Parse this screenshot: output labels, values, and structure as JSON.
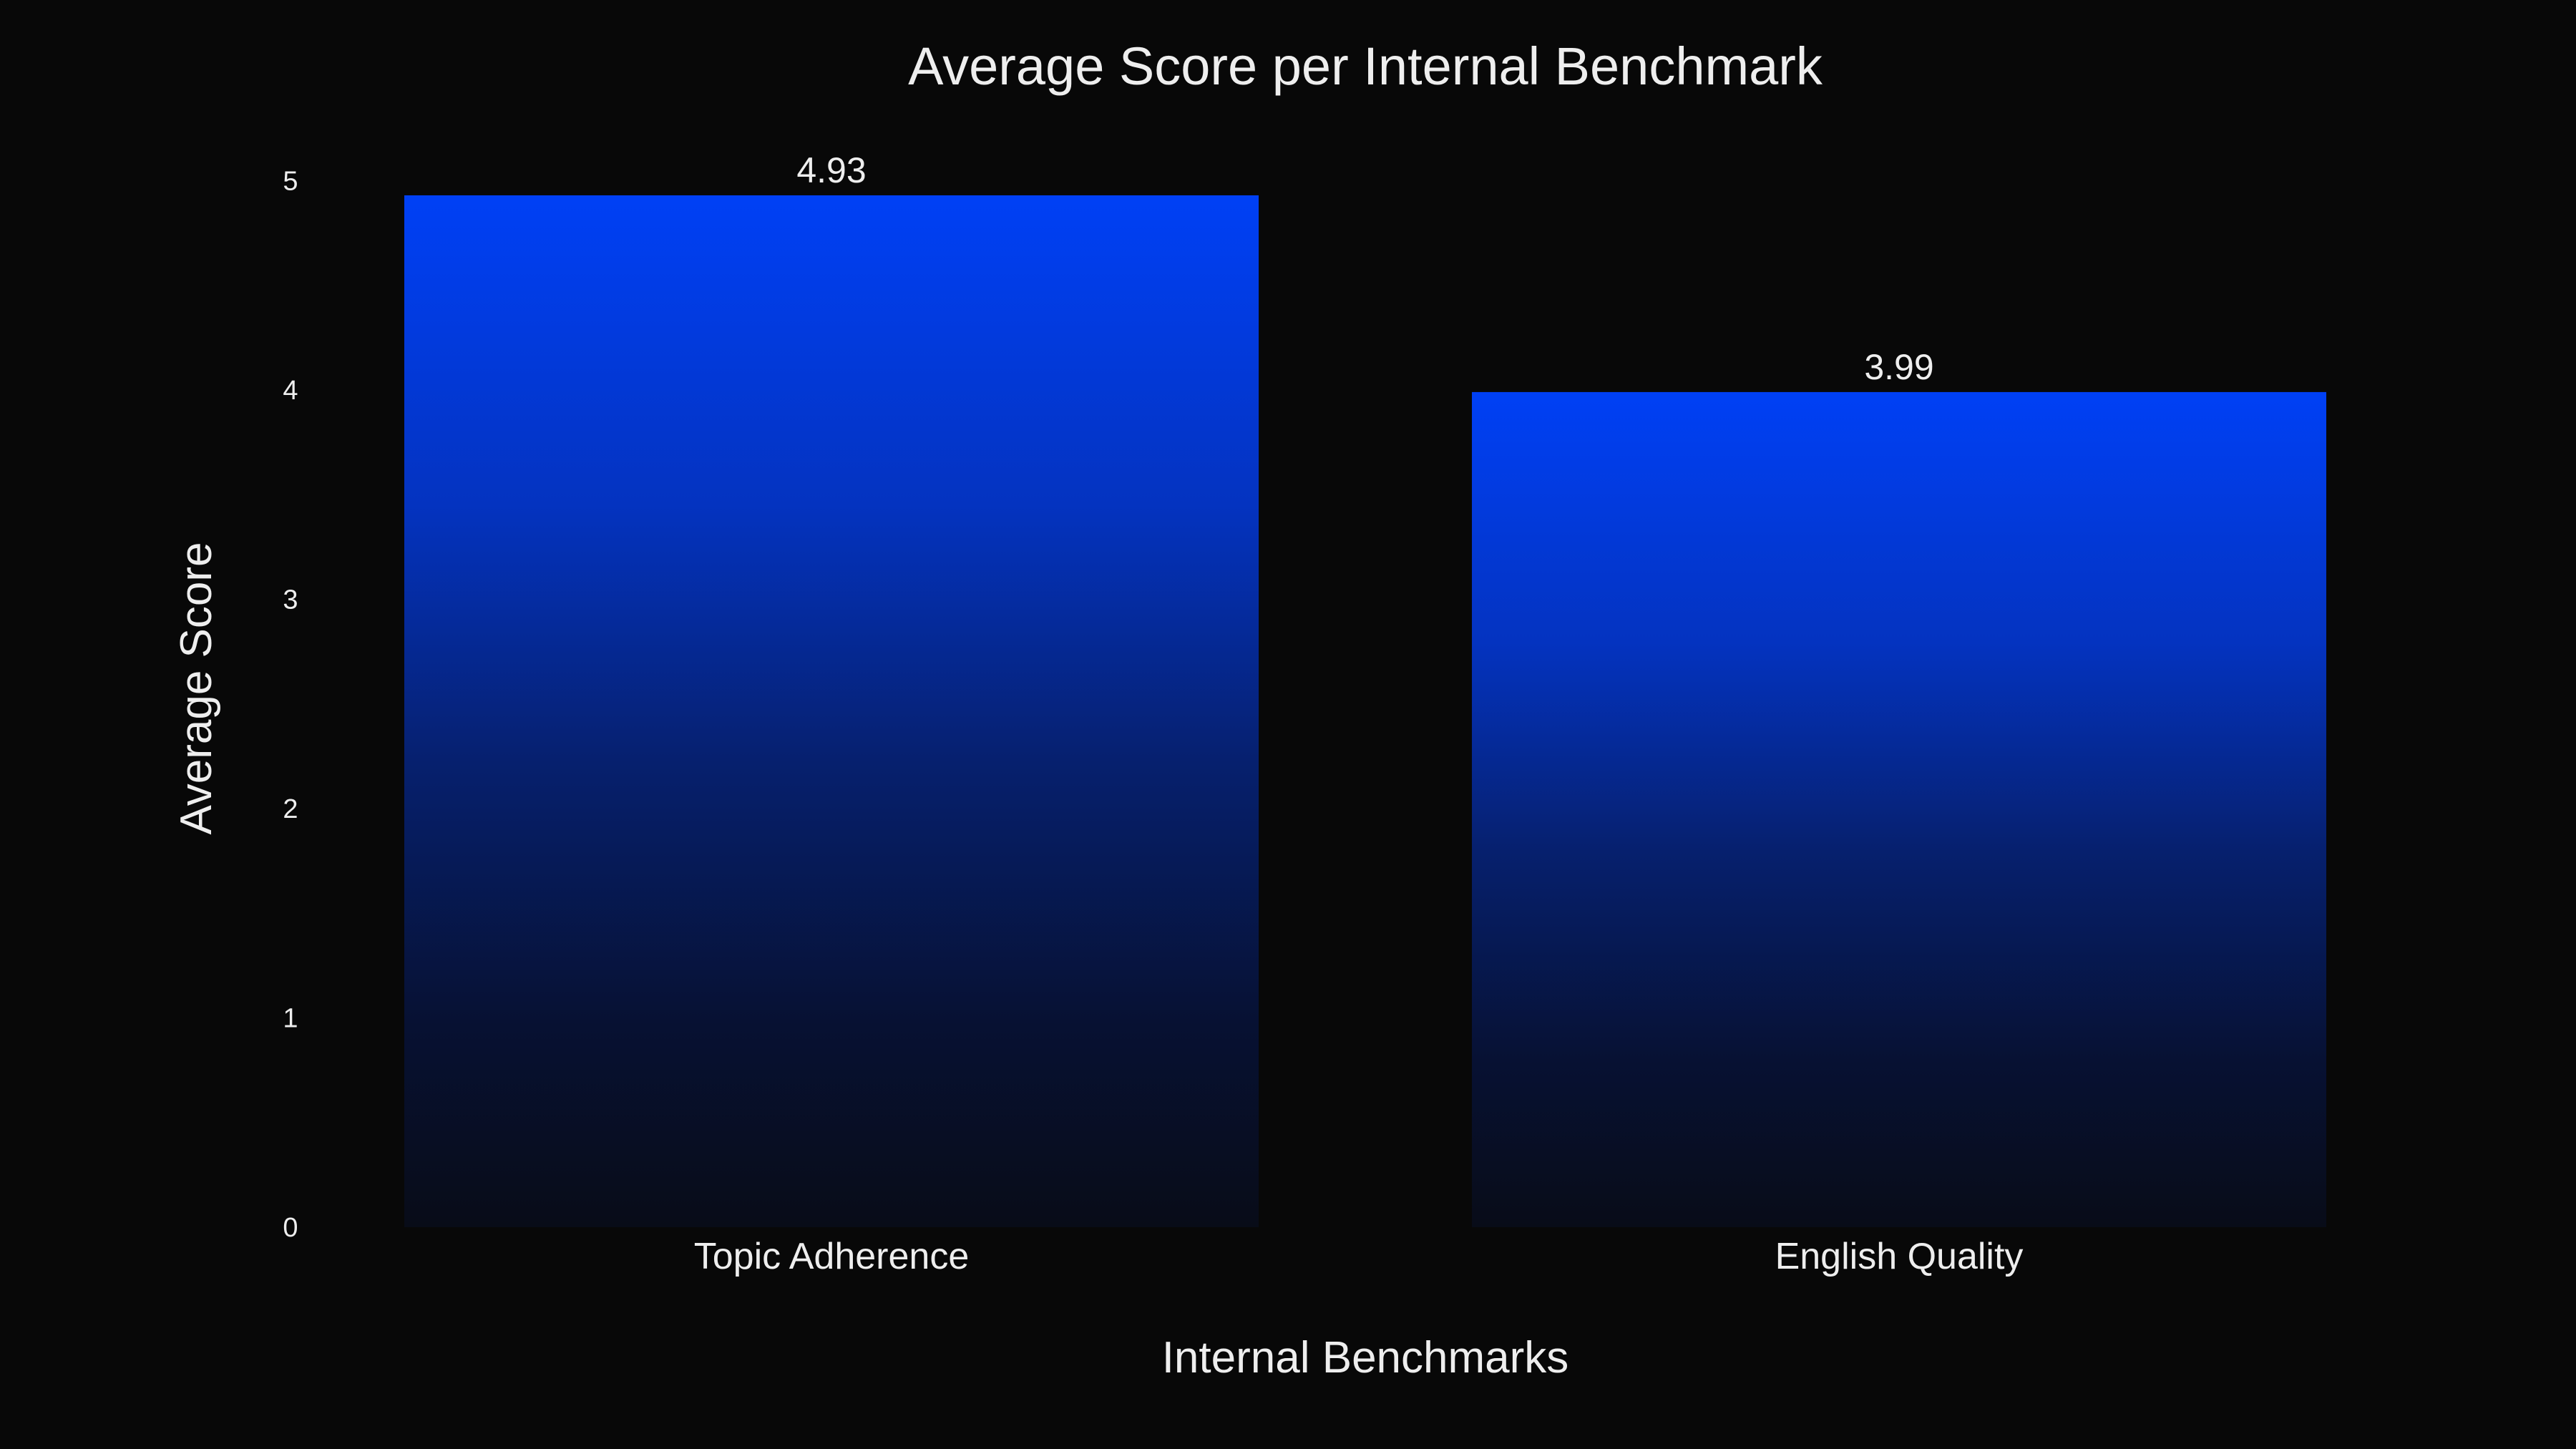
{
  "chart_data": {
    "type": "bar",
    "title": "Average Score per Internal Benchmark",
    "xlabel": "Internal Benchmarks",
    "ylabel": "Average Score",
    "categories": [
      "Topic Adherence",
      "English Quality"
    ],
    "values": [
      4.93,
      3.99
    ],
    "value_labels": [
      "4.93",
      "3.99"
    ],
    "ylim": [
      0,
      5
    ],
    "yticks": [
      "0",
      "1",
      "2",
      "3",
      "4",
      "5"
    ],
    "grid": false,
    "legend": "none",
    "colors": {
      "background": "#080808",
      "bar_top": "#0040f5",
      "bar_bottom": "#080c18",
      "text": "#eeeeee"
    }
  }
}
